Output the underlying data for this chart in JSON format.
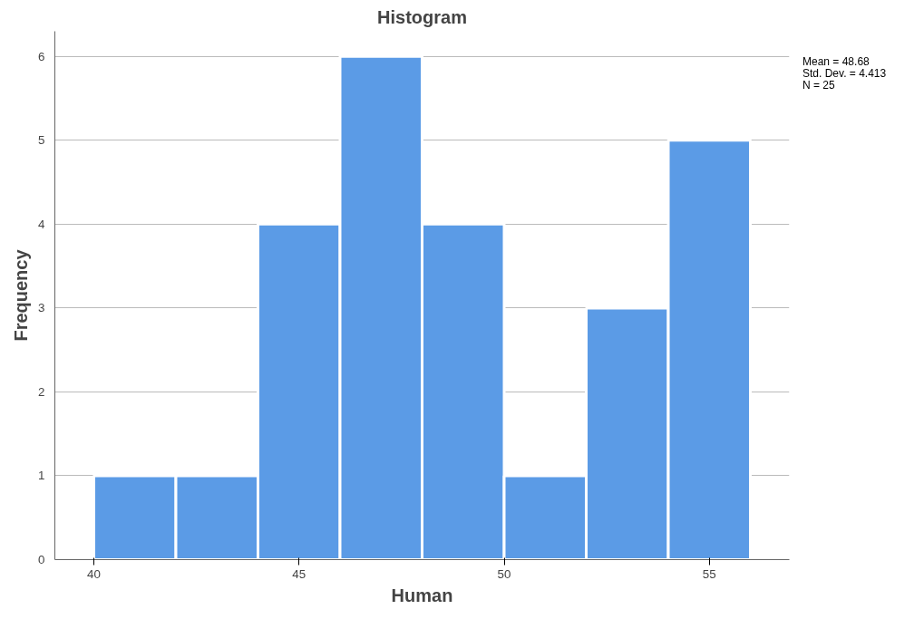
{
  "chart_data": {
    "type": "histogram",
    "title": "Histogram",
    "xlabel": "Human",
    "ylabel": "Frequency",
    "bins": [
      40,
      42,
      44,
      46,
      48,
      50,
      52,
      54,
      56
    ],
    "values": [
      1,
      1,
      4,
      6,
      4,
      1,
      3,
      5
    ],
    "color": "#5b9be6",
    "xlim": [
      39.05,
      56.95
    ],
    "ylim": [
      0,
      6.3
    ],
    "xticks": [
      40,
      45,
      50,
      55
    ],
    "yticks": [
      0,
      1,
      2,
      3,
      4,
      5,
      6
    ],
    "grid": "y",
    "annotations": [
      "Mean = 48.68",
      "Std. Dev. = 4.413",
      "N = 25"
    ]
  }
}
